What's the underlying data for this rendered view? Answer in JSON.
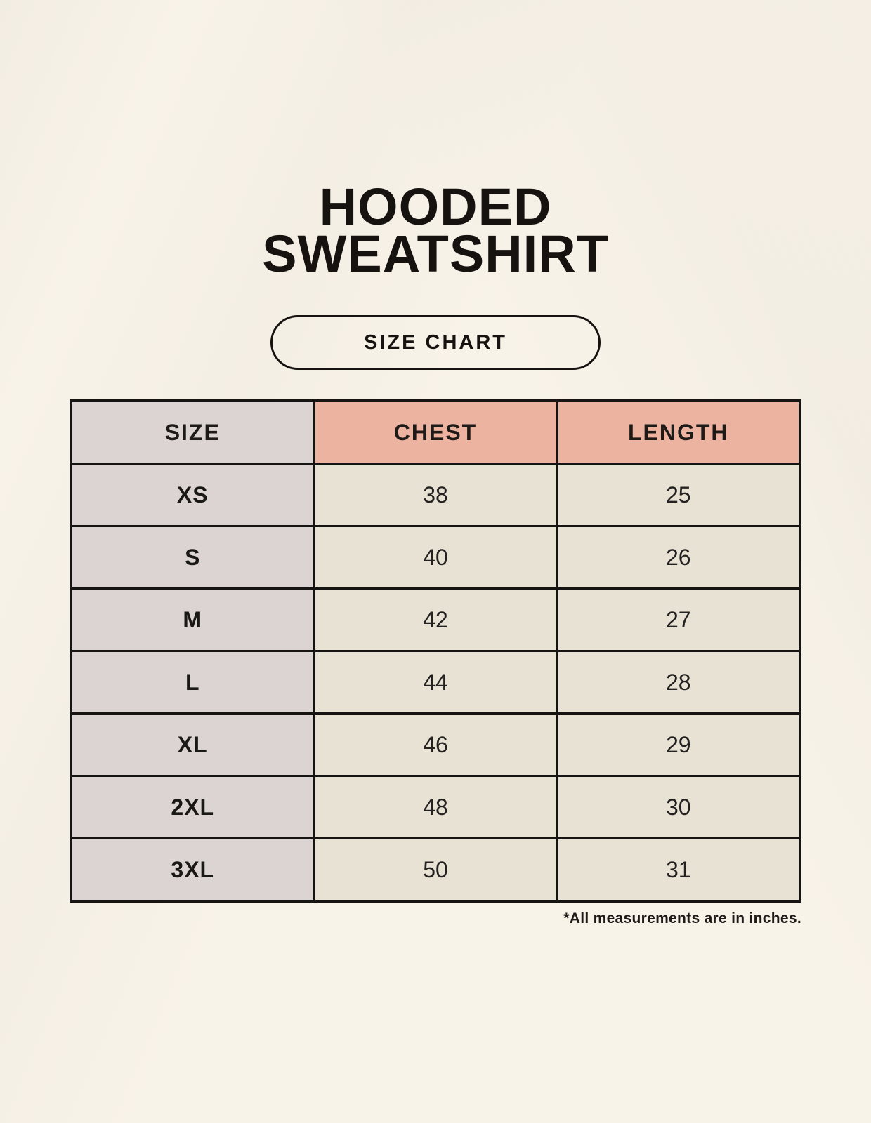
{
  "header": {
    "title_line1": "HOODED",
    "title_line2": "SWEATSHIRT",
    "badge_label": "SIZE CHART"
  },
  "size_table": {
    "columns": [
      "SIZE",
      "CHEST",
      "LENGTH"
    ],
    "rows": [
      [
        "XS",
        "38",
        "25"
      ],
      [
        "S",
        "40",
        "26"
      ],
      [
        "M",
        "42",
        "27"
      ],
      [
        "L",
        "44",
        "28"
      ],
      [
        "XL",
        "46",
        "29"
      ],
      [
        "2XL",
        "48",
        "30"
      ],
      [
        "3XL",
        "50",
        "31"
      ]
    ],
    "footnote": "*All measurements are in inches."
  },
  "chart_data": {
    "type": "table",
    "title": "HOODED SWEATSHIRT SIZE CHART",
    "columns": [
      "SIZE",
      "CHEST",
      "LENGTH"
    ],
    "rows": [
      {
        "size": "XS",
        "chest": 38,
        "length": 25
      },
      {
        "size": "S",
        "chest": 40,
        "length": 26
      },
      {
        "size": "M",
        "chest": 42,
        "length": 27
      },
      {
        "size": "L",
        "chest": 44,
        "length": 28
      },
      {
        "size": "XL",
        "chest": 46,
        "length": 29
      },
      {
        "size": "2XL",
        "chest": 48,
        "length": 30
      },
      {
        "size": "3XL",
        "chest": 50,
        "length": 31
      }
    ],
    "units": "inches",
    "notes": "*All measurements are in inches."
  },
  "colors": {
    "background": "#f8f3e9",
    "label_column_bg": "#dcd4d2",
    "measure_header_bg": "#edb3a1",
    "data_cell_bg": "#e8e2d4",
    "table_border": "#161412",
    "text": "#1a1816"
  }
}
